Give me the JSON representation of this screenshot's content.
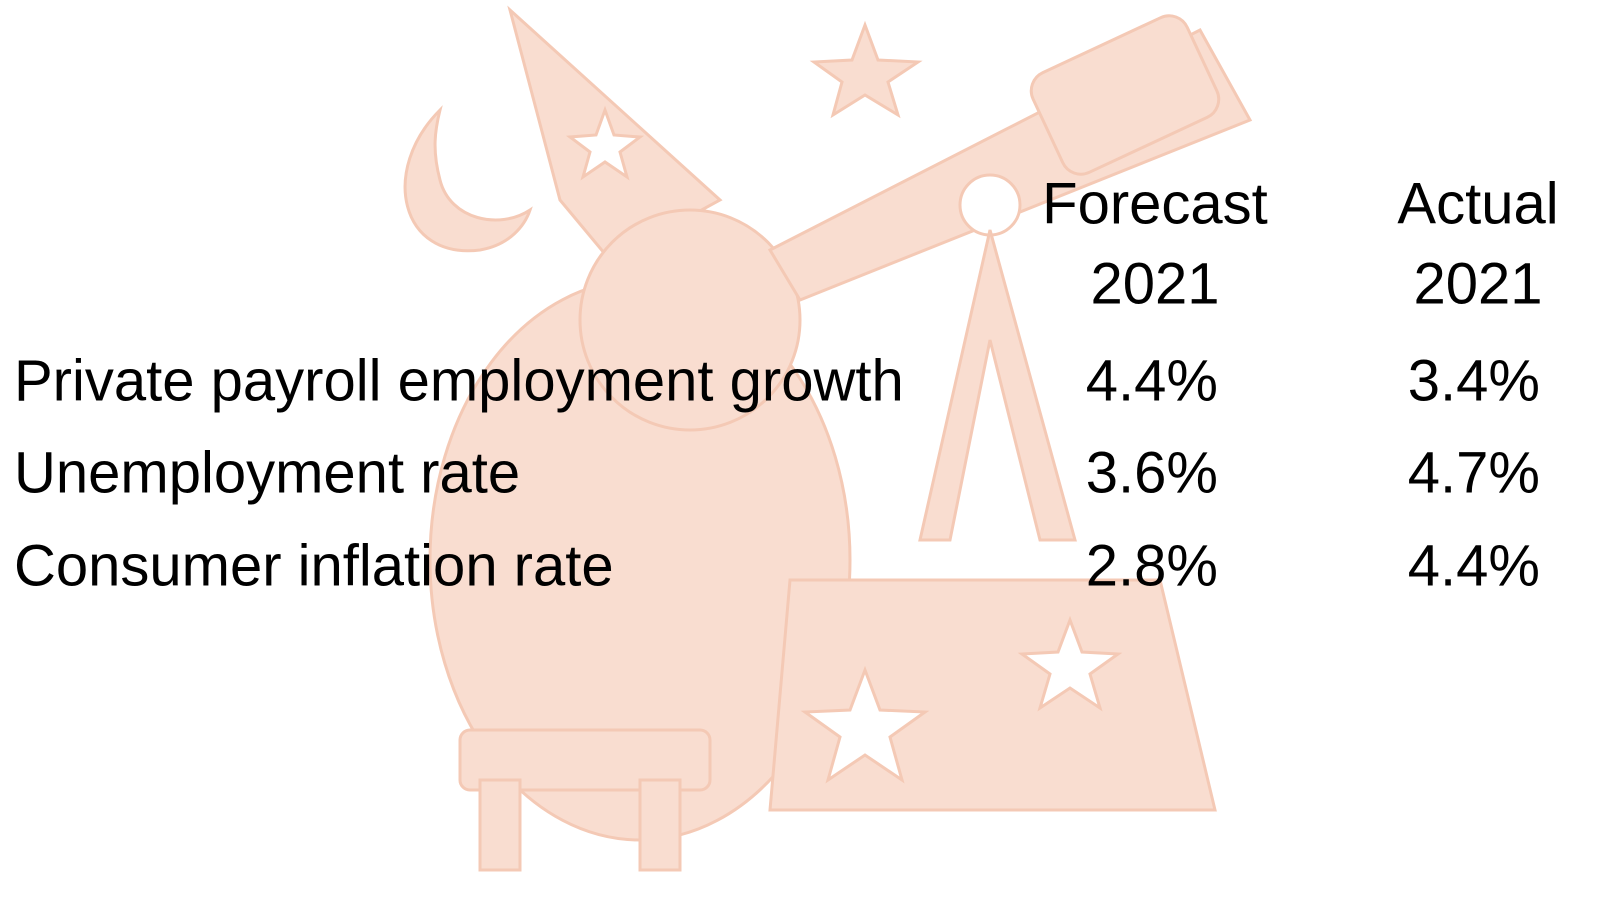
{
  "table": {
    "header": [
      [
        "Forecast",
        "2021"
      ],
      [
        "Actual",
        "2021"
      ]
    ],
    "rows": [
      {
        "label": "Private payroll employment growth",
        "values": [
          "4.4%",
          "3.4%"
        ]
      },
      {
        "label": "Unemployment rate",
        "values": [
          "3.6%",
          "4.7%"
        ]
      },
      {
        "label": "Consumer inflation rate",
        "values": [
          "2.8%",
          "4.4%"
        ]
      }
    ]
  }
}
